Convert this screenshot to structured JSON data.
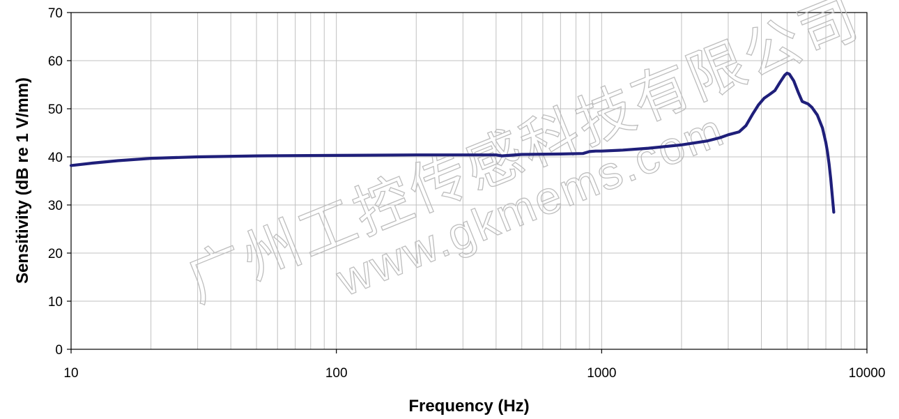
{
  "chart_data": {
    "type": "line",
    "title": "",
    "xlabel": "Frequency (Hz)",
    "ylabel": "Sensitivity (dB re 1 V/mm)",
    "xscale": "log",
    "xlim": [
      10,
      10000
    ],
    "ylim": [
      0,
      70
    ],
    "x_ticks": [
      "10",
      "100",
      "1000",
      "10000"
    ],
    "y_ticks": [
      "0",
      "10",
      "20",
      "30",
      "40",
      "50",
      "60",
      "70"
    ],
    "grid": true,
    "legend": "none",
    "line_color": "#1f1f7a",
    "series": [
      {
        "x": [
          10,
          12,
          15,
          20,
          30,
          50,
          100,
          200,
          400,
          420,
          500,
          700,
          850,
          900,
          950,
          1000,
          1200,
          1500,
          2000,
          2500,
          2800,
          3000,
          3300,
          3500,
          3700,
          3900,
          4100,
          4300,
          4500,
          4700,
          4900,
          5000,
          5100,
          5300,
          5500,
          5700,
          6000,
          6200,
          6500,
          6800,
          7000,
          7100,
          7200,
          7300,
          7400,
          7500
        ],
        "y": [
          38.2,
          38.7,
          39.2,
          39.7,
          40.0,
          40.2,
          40.3,
          40.4,
          40.4,
          40.2,
          40.5,
          40.6,
          40.7,
          41.1,
          41.2,
          41.2,
          41.4,
          41.8,
          42.5,
          43.3,
          44.0,
          44.6,
          45.2,
          46.5,
          48.8,
          50.8,
          52.2,
          53.0,
          53.8,
          55.5,
          57.0,
          57.4,
          57.2,
          55.8,
          53.5,
          51.5,
          51.0,
          50.3,
          48.7,
          46.0,
          43.0,
          41.0,
          38.5,
          35.5,
          32.0,
          28.5
        ]
      }
    ]
  },
  "watermark": {
    "line1": "广州工控传感科技有限公司",
    "line2": "www.gkmems.com"
  }
}
